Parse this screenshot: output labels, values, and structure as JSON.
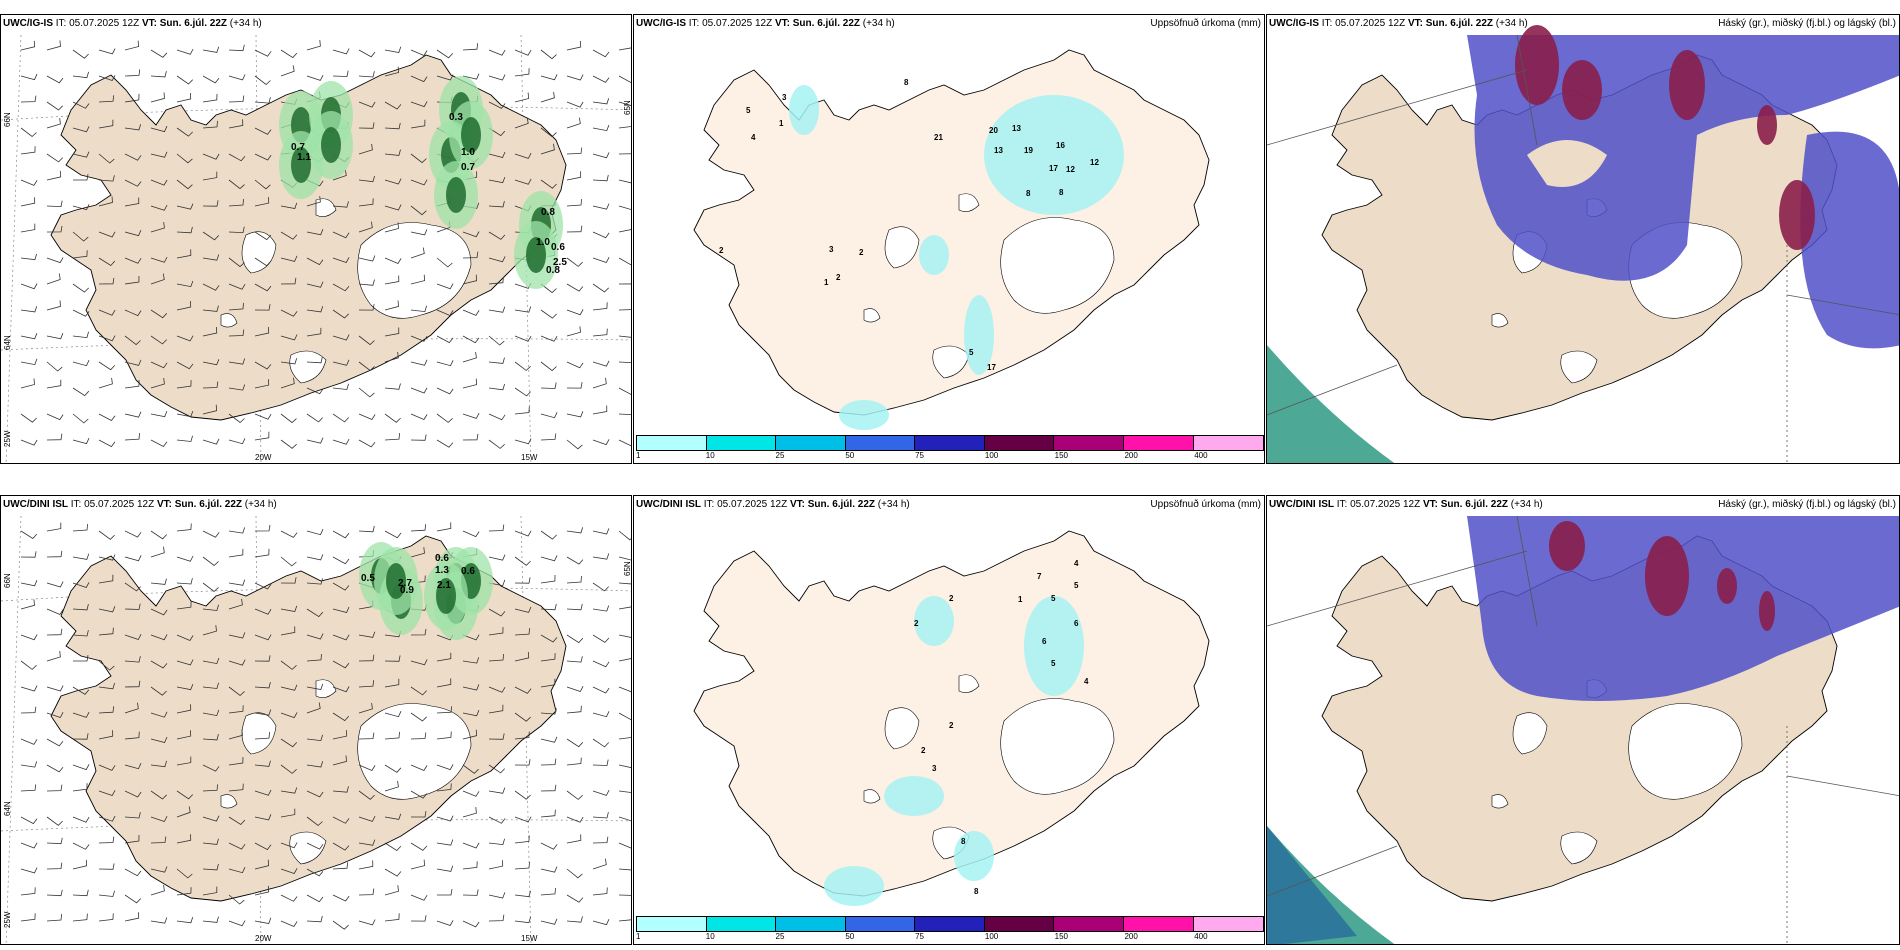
{
  "rows": [
    {
      "model": "UWC/IG-IS",
      "panels": [
        {
          "kind": "wind",
          "header": {
            "model": "UWC/IG-IS",
            "it": "IT: 05.07.2025 12Z",
            "vt": "VT: Sun. 6.júl. 22Z",
            "lead": "(+34 h)"
          },
          "title": "",
          "axis": {
            "lat_top": "66N",
            "lat_mid": "64N",
            "lon_left": "25W",
            "lon_mid": "20W",
            "lon_right": "15W",
            "lat_right": "65N"
          },
          "values": [
            "0.7",
            "1.1",
            "1.0",
            "0.7",
            "0.3",
            "0.8",
            "1.0",
            "0.6",
            "2.5",
            "0.8"
          ]
        },
        {
          "kind": "precip",
          "header": {
            "model": "UWC/IG-IS",
            "it": "IT: 05.07.2025 12Z",
            "vt": "VT: Sun. 6.júl. 22Z",
            "lead": "(+34 h)"
          },
          "title": "Uppsöfnuð úrkoma (mm)",
          "values": [
            "4",
            "5",
            "3",
            "1",
            "8",
            "21",
            "20",
            "13",
            "13",
            "19",
            "16",
            "12",
            "17",
            "12",
            "8",
            "8",
            "2",
            "2",
            "3",
            "2",
            "1",
            "17",
            "5"
          ]
        },
        {
          "kind": "cloud",
          "header": {
            "model": "UWC/IG-IS",
            "it": "IT: 05.07.2025 12Z",
            "vt": "VT: Sun. 6.júl. 22Z",
            "lead": "(+34 h)"
          },
          "title": "Háský (gr.), miðský (fj.bl.) og lágský (bl.)"
        }
      ]
    },
    {
      "model": "UWC/DINI ISL",
      "panels": [
        {
          "kind": "wind",
          "header": {
            "model": "UWC/DINI ISL",
            "it": "IT: 05.07.2025 12Z",
            "vt": "VT: Sun. 6.júl. 22Z",
            "lead": "(+34 h)"
          },
          "title": "",
          "axis": {
            "lat_top": "66N",
            "lat_mid": "64N",
            "lon_left": "25W",
            "lon_mid": "20W",
            "lon_right": "15W",
            "lat_right": "65N"
          },
          "values": [
            "0.6",
            "0.5",
            "1.3",
            "0.6",
            "0.9",
            "2.7",
            "2.1"
          ]
        },
        {
          "kind": "precip",
          "header": {
            "model": "UWC/DINI ISL",
            "it": "IT: 05.07.2025 12Z",
            "vt": "VT: Sun. 6.júl. 22Z",
            "lead": "(+34 h)"
          },
          "title": "Uppsöfnuð úrkoma (mm)",
          "values": [
            "4",
            "7",
            "5",
            "2",
            "5",
            "6",
            "2",
            "4",
            "5",
            "1",
            "6",
            "2",
            "2",
            "8",
            "3",
            "8"
          ]
        },
        {
          "kind": "cloud",
          "header": {
            "model": "UWC/DINI ISL",
            "it": "IT: 05.07.2025 12Z",
            "vt": "VT: Sun. 6.júl. 22Z",
            "lead": "(+34 h)"
          },
          "title": "Háský (gr.), miðský (fj.bl.) og lágský (bl.)"
        }
      ]
    }
  ],
  "precip_scale": {
    "colors": [
      "#b2ffff",
      "#00e6e6",
      "#00bfe6",
      "#3366e6",
      "#2222bb",
      "#660044",
      "#aa0077",
      "#ff11aa",
      "#ffaaee"
    ],
    "ticks": [
      "1",
      "10",
      "25",
      "50",
      "75",
      "100",
      "150",
      "200",
      "400"
    ]
  },
  "colors": {
    "land": "#efe0d0",
    "land_precip": "#fdf0e4",
    "glacier": "#ffffff",
    "cloud_mid": "#5050c8",
    "cloud_high": "#8a1e4a",
    "cloud_low": "#3aa08a",
    "precip_light": "#a6f2f2"
  }
}
